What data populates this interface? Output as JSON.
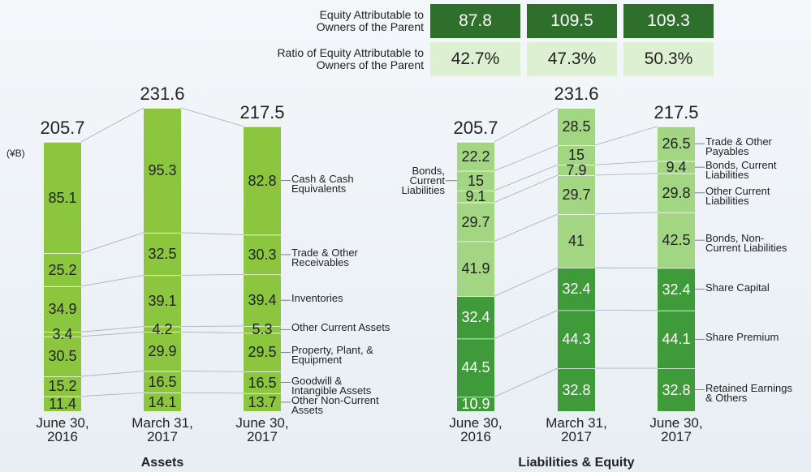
{
  "equity_table": {
    "rows": [
      {
        "label": "Equity Attributable to\nOwners of the Parent",
        "cells": [
          "87.8",
          "109.5",
          "109.3"
        ]
      },
      {
        "label": "Ratio of Equity Attributable to\nOwners of the Parent",
        "cells": [
          "42.7%",
          "47.3%",
          "50.3%"
        ]
      }
    ]
  },
  "chart_data": [
    {
      "type": "bar",
      "stacked": true,
      "title": "Assets",
      "y_label": "(¥B)",
      "categories": [
        "June 30,\n2016",
        "March 31,\n2017",
        "June 30,\n2017"
      ],
      "totals": [
        205.7,
        231.6,
        217.5
      ],
      "series": [
        {
          "name": "Other Non-Current\nAssets",
          "color": "#8cc63e",
          "values": [
            11.4,
            14.1,
            13.7
          ]
        },
        {
          "name": "Goodwill &\nIntangible Assets",
          "color": "#8cc63e",
          "values": [
            15.2,
            16.5,
            16.5
          ]
        },
        {
          "name": "Property, Plant, &\nEquipment",
          "color": "#8cc63e",
          "values": [
            30.5,
            29.9,
            29.5
          ]
        },
        {
          "name": "Other Current Assets",
          "color": "#8cc63e",
          "values": [
            3.4,
            4.2,
            5.3
          ]
        },
        {
          "name": "Inventories",
          "color": "#8cc63e",
          "values": [
            34.9,
            39.1,
            39.4
          ]
        },
        {
          "name": "Trade & Other\nReceivables",
          "color": "#8cc63e",
          "values": [
            25.2,
            32.5,
            30.3
          ]
        },
        {
          "name": "Cash & Cash\nEquivalents",
          "color": "#8cc63e",
          "values": [
            85.1,
            95.3,
            82.8
          ]
        }
      ]
    },
    {
      "type": "bar",
      "stacked": true,
      "title": "Liabilities & Equity",
      "categories": [
        "June 30,\n2016",
        "March 31,\n2017",
        "June 30,\n2017"
      ],
      "totals": [
        205.7,
        231.6,
        217.5
      ],
      "series": [
        {
          "name": "Retained Earnings\n& Others",
          "color": "#3f9b3a",
          "values": [
            10.9,
            32.8,
            32.8
          ]
        },
        {
          "name": "Share Premium",
          "color": "#3f9b3a",
          "values": [
            44.5,
            44.3,
            44.1
          ]
        },
        {
          "name": "Share Capital",
          "color": "#3f9b3a",
          "values": [
            32.4,
            32.4,
            32.4
          ]
        },
        {
          "name": "Bonds, Non-\nCurrent Liabilities",
          "color": "#a3d683",
          "values": [
            41.9,
            41.0,
            42.5
          ]
        },
        {
          "name": "Other Current\nLiabilities",
          "color": "#a3d683",
          "values": [
            29.7,
            29.7,
            29.8
          ]
        },
        {
          "name": "Bonds, Current\nLiabilities",
          "color": "#a3d683",
          "values": [
            9.1,
            7.9,
            9.4
          ]
        },
        {
          "name": "Bonds,\nCurrent\nLiabilities",
          "color": "#a3d683",
          "values": [
            15.0,
            15.0,
            null
          ]
        },
        {
          "name": "Trade & Other\nPayables",
          "color": "#a3d683",
          "values": [
            22.2,
            28.5,
            26.5
          ]
        }
      ]
    }
  ]
}
